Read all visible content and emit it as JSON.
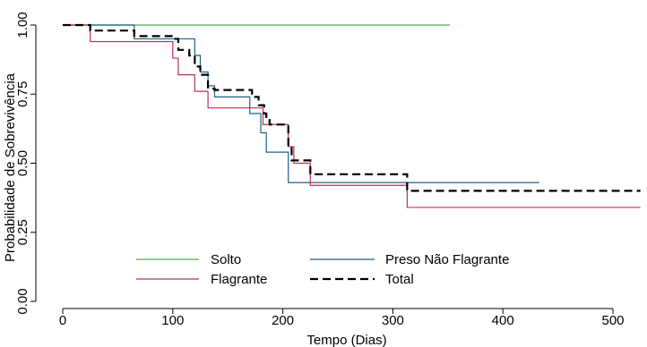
{
  "chart_data": {
    "type": "line",
    "step": true,
    "xlabel": "Tempo (Dias)",
    "ylabel": "Probabilidade de Sobrevivência",
    "xlim": [
      0,
      530
    ],
    "ylim": [
      0,
      1
    ],
    "xticks": [
      0,
      100,
      200,
      300,
      400,
      500
    ],
    "yticks": [
      0,
      0.25,
      0.5,
      0.75,
      1
    ],
    "ytick_labels": [
      "0.00",
      "0.25",
      "0.50",
      "0.75",
      "1.00"
    ],
    "grid": false,
    "legend_position": "bottom-center",
    "series": [
      {
        "name": "Solto",
        "color": "#4daf4a",
        "dash": "solid",
        "x": [
          0,
          352
        ],
        "y": [
          1.0,
          1.0
        ]
      },
      {
        "name": "Preso Não Flagrante",
        "color": "#1f5f86",
        "dash": "solid",
        "x": [
          0,
          65,
          120,
          125,
          132,
          138,
          170,
          180,
          185,
          192,
          205,
          433
        ],
        "y": [
          1.0,
          0.95,
          0.89,
          0.83,
          0.78,
          0.74,
          0.68,
          0.61,
          0.54,
          0.54,
          0.43,
          0.43
        ]
      },
      {
        "name": "Flagrante",
        "color": "#c0314f",
        "dash": "solid",
        "x": [
          0,
          25,
          100,
          105,
          120,
          132,
          175,
          182,
          190,
          205,
          210,
          225,
          313,
          525
        ],
        "y": [
          1.0,
          0.94,
          0.88,
          0.82,
          0.76,
          0.7,
          0.7,
          0.64,
          0.64,
          0.56,
          0.5,
          0.42,
          0.34,
          0.34
        ]
      },
      {
        "name": "Total",
        "color": "#000000",
        "dash": "dashed",
        "x": [
          0,
          25,
          65,
          100,
          105,
          115,
          120,
          125,
          132,
          138,
          172,
          178,
          183,
          185,
          188,
          205,
          208,
          225,
          313,
          525
        ],
        "y": [
          1.0,
          0.98,
          0.96,
          0.95,
          0.91,
          0.89,
          0.85,
          0.82,
          0.77,
          0.765,
          0.74,
          0.71,
          0.68,
          0.66,
          0.64,
          0.56,
          0.51,
          0.46,
          0.4,
          0.4
        ]
      }
    ],
    "legend_rows": [
      [
        "Solto",
        "Preso Não Flagrante"
      ],
      [
        "Flagrante",
        "Total"
      ]
    ]
  }
}
